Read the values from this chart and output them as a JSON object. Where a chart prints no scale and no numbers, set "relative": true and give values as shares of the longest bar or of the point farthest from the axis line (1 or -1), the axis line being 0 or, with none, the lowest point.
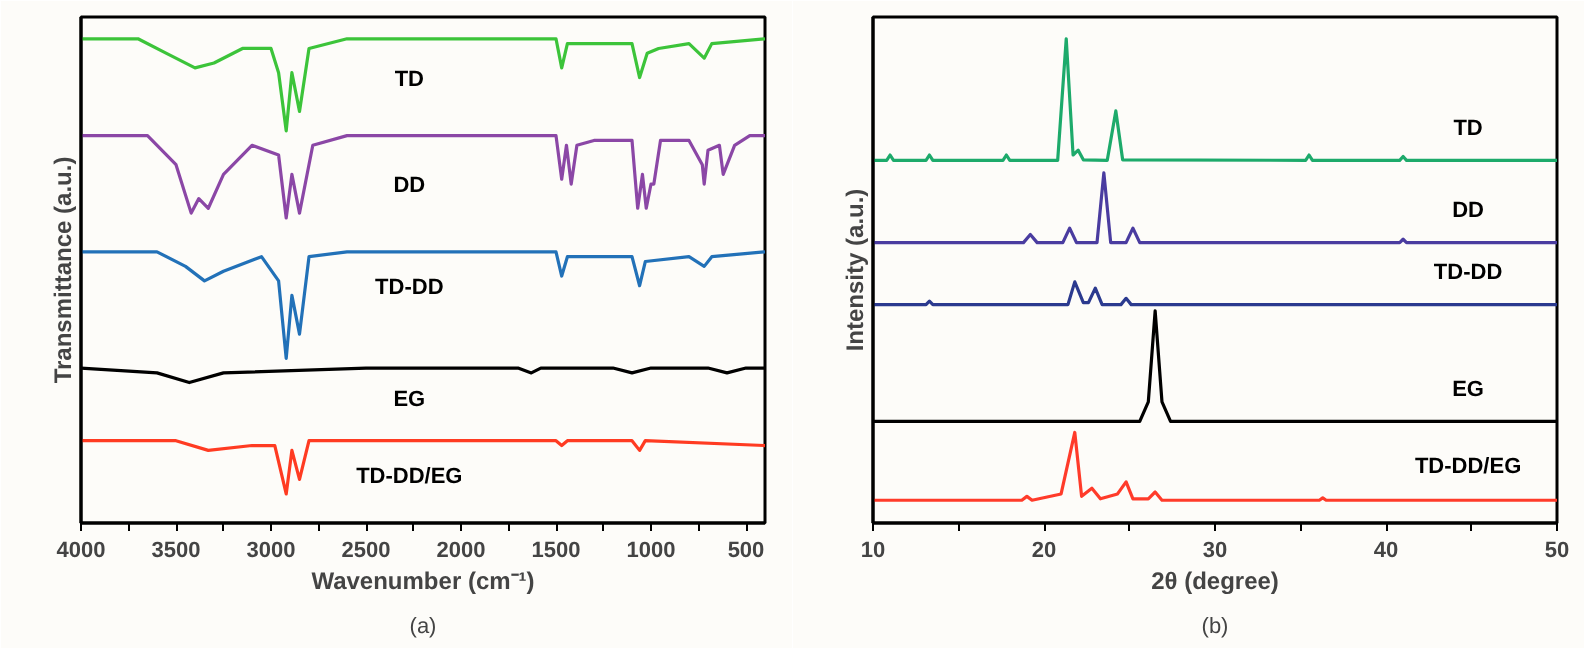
{
  "chart_data": [
    {
      "type": "line",
      "relative": true,
      "tick_labels": "x",
      "xlabel": "Wavenumber (cm⁻¹)",
      "ylabel": "Transmittance (a.u.)",
      "annotations": [
        "(a)"
      ],
      "xlim": [
        4000,
        400
      ],
      "xticks": [
        4000,
        {
          "value": 3750,
          "label": null
        },
        3500,
        {
          "value": 3250,
          "label": null
        },
        3000,
        {
          "value": 2750,
          "label": null
        },
        2500,
        {
          "value": 2250,
          "label": null
        },
        2000,
        {
          "value": 1750,
          "label": null
        },
        1500,
        {
          "value": 1250,
          "label": null
        },
        1000,
        {
          "value": 750,
          "label": null
        },
        500
      ],
      "series": [
        {
          "name": "TD",
          "color": "#3cc43a",
          "x": [
            4000,
            3700,
            3550,
            3400,
            3300,
            3150,
            3000,
            2960,
            2920,
            2890,
            2850,
            2800,
            2600,
            1500,
            1470,
            1440,
            1300,
            1100,
            1060,
            1020,
            960,
            800,
            720,
            680,
            400
          ],
          "values": [
            1.0,
            1.0,
            0.97,
            0.94,
            0.95,
            0.98,
            0.98,
            0.93,
            0.81,
            0.93,
            0.85,
            0.98,
            1.0,
            1.0,
            0.94,
            0.99,
            0.99,
            0.99,
            0.92,
            0.97,
            0.98,
            0.99,
            0.96,
            0.99,
            1.0
          ]
        },
        {
          "name": "DD",
          "color": "#8b47a6",
          "x": [
            4000,
            3650,
            3500,
            3420,
            3380,
            3330,
            3250,
            3100,
            2960,
            2920,
            2890,
            2850,
            2780,
            2600,
            1500,
            1470,
            1445,
            1420,
            1390,
            1300,
            1100,
            1070,
            1045,
            1025,
            1000,
            985,
            950,
            800,
            730,
            720,
            700,
            640,
            620,
            560,
            480,
            400
          ],
          "values": [
            0.8,
            0.8,
            0.74,
            0.64,
            0.67,
            0.65,
            0.72,
            0.78,
            0.76,
            0.63,
            0.72,
            0.64,
            0.78,
            0.8,
            0.8,
            0.71,
            0.78,
            0.7,
            0.78,
            0.79,
            0.79,
            0.65,
            0.72,
            0.65,
            0.7,
            0.7,
            0.79,
            0.79,
            0.74,
            0.7,
            0.77,
            0.78,
            0.72,
            0.78,
            0.8,
            0.8
          ]
        },
        {
          "name": "TD-DD",
          "color": "#2271b8",
          "x": [
            4000,
            3600,
            3450,
            3350,
            3250,
            3050,
            2960,
            2920,
            2890,
            2850,
            2800,
            2600,
            1500,
            1470,
            1440,
            1100,
            1060,
            1030,
            800,
            720,
            680,
            400
          ],
          "values": [
            0.56,
            0.56,
            0.53,
            0.5,
            0.52,
            0.55,
            0.5,
            0.34,
            0.47,
            0.39,
            0.55,
            0.56,
            0.56,
            0.51,
            0.55,
            0.55,
            0.49,
            0.54,
            0.55,
            0.53,
            0.55,
            0.56
          ]
        },
        {
          "name": "EG",
          "color": "#000000",
          "x": [
            4000,
            3600,
            3430,
            3250,
            2500,
            1700,
            1630,
            1580,
            1200,
            1100,
            1000,
            700,
            600,
            500,
            400
          ],
          "values": [
            0.32,
            0.31,
            0.29,
            0.31,
            0.32,
            0.32,
            0.31,
            0.32,
            0.32,
            0.31,
            0.32,
            0.32,
            0.31,
            0.32,
            0.32
          ]
        },
        {
          "name": "TD-DD/EG",
          "color": "#ff3b22",
          "x": [
            4000,
            3500,
            3330,
            3100,
            2980,
            2920,
            2890,
            2850,
            2800,
            1500,
            1470,
            1440,
            1100,
            1060,
            1030,
            400
          ],
          "values": [
            0.17,
            0.17,
            0.15,
            0.16,
            0.16,
            0.06,
            0.15,
            0.09,
            0.17,
            0.17,
            0.16,
            0.17,
            0.17,
            0.15,
            0.17,
            0.16
          ]
        }
      ]
    },
    {
      "type": "line",
      "relative": true,
      "tick_labels": "x",
      "xlabel": "2θ (degree)",
      "ylabel": "Intensity (a.u.)",
      "annotations": [
        "(b)"
      ],
      "xlim": [
        10,
        50
      ],
      "xticks": [
        10,
        {
          "value": 15,
          "label": null
        },
        20,
        {
          "value": 25,
          "label": null
        },
        30,
        {
          "value": 35,
          "label": null
        },
        40,
        {
          "value": 45,
          "label": null
        },
        50
      ],
      "series": [
        {
          "name": "TD",
          "color": "#1daa6b",
          "x": [
            10,
            10.8,
            11,
            11.2,
            13.1,
            13.3,
            13.5,
            17.6,
            17.8,
            18,
            20.8,
            21.3,
            21.7,
            22.0,
            22.3,
            23.7,
            24.2,
            24.6,
            35.3,
            35.5,
            35.7,
            40.8,
            41,
            41.2,
            50
          ],
          "values": [
            0.749,
            0.749,
            0.76,
            0.749,
            0.749,
            0.76,
            0.749,
            0.749,
            0.76,
            0.749,
            0.749,
            1.0,
            0.76,
            0.77,
            0.75,
            0.749,
            0.851,
            0.75,
            0.749,
            0.76,
            0.749,
            0.749,
            0.757,
            0.749,
            0.749
          ]
        },
        {
          "name": "DD",
          "color": "#4a3ca0",
          "x": [
            10,
            18.8,
            19.2,
            19.6,
            21.1,
            21.5,
            21.9,
            23.1,
            23.5,
            23.9,
            24.8,
            25.2,
            25.6,
            40.8,
            41,
            41.2,
            50
          ],
          "values": [
            0.579,
            0.579,
            0.596,
            0.579,
            0.579,
            0.609,
            0.579,
            0.579,
            0.723,
            0.579,
            0.579,
            0.609,
            0.579,
            0.579,
            0.586,
            0.579,
            0.579
          ]
        },
        {
          "name": "TD-DD",
          "color": "#2b3a8f",
          "x": [
            10,
            13.1,
            13.3,
            13.5,
            21.4,
            21.8,
            22.3,
            22.6,
            23.0,
            23.4,
            24.5,
            24.8,
            25.1,
            50
          ],
          "values": [
            0.451,
            0.451,
            0.458,
            0.451,
            0.451,
            0.498,
            0.455,
            0.455,
            0.485,
            0.451,
            0.451,
            0.464,
            0.451,
            0.451
          ]
        },
        {
          "name": "EG",
          "color": "#000000",
          "x": [
            10,
            25.6,
            26.1,
            26.5,
            26.9,
            27.4,
            50
          ],
          "values": [
            0.21,
            0.21,
            0.25,
            0.438,
            0.25,
            0.21,
            0.21
          ]
        },
        {
          "name": "TD-DD/EG",
          "color": "#ff3b2a",
          "x": [
            10,
            18.7,
            19.0,
            19.3,
            21.0,
            21.8,
            22.2,
            22.8,
            23.3,
            24.3,
            24.8,
            25.2,
            26.1,
            26.5,
            26.9,
            36.1,
            36.3,
            36.5,
            50
          ],
          "values": [
            0.047,
            0.047,
            0.055,
            0.047,
            0.06,
            0.187,
            0.055,
            0.072,
            0.05,
            0.06,
            0.085,
            0.05,
            0.05,
            0.064,
            0.047,
            0.047,
            0.052,
            0.047,
            0.047
          ]
        }
      ]
    }
  ]
}
